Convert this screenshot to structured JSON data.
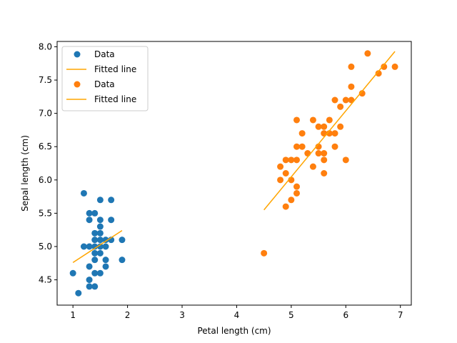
{
  "chart_data": {
    "type": "scatter",
    "xlabel": "Petal length (cm)",
    "ylabel": "Sepal length (cm)",
    "xlim": [
      0.71,
      7.2
    ],
    "ylim": [
      4.12,
      8.08
    ],
    "xticks": [
      1,
      2,
      3,
      4,
      5,
      6,
      7
    ],
    "yticks": [
      4.5,
      5.0,
      5.5,
      6.0,
      6.5,
      7.0,
      7.5,
      8.0
    ],
    "ytick_labels": [
      "4.5",
      "5.0",
      "5.5",
      "6.0",
      "6.5",
      "7.0",
      "7.5",
      "8.0"
    ],
    "grid": false,
    "legend_position": "top-left",
    "legend": [
      {
        "label": "Data",
        "kind": "marker",
        "color": "#1f77b4"
      },
      {
        "label": "Fitted line",
        "kind": "line",
        "color": "#ffa500"
      },
      {
        "label": "Data",
        "kind": "marker",
        "color": "#ff7f0e"
      },
      {
        "label": "Fitted line",
        "kind": "line",
        "color": "#ffa500"
      }
    ],
    "series": [
      {
        "kind": "scatter",
        "color": "#1f77b4",
        "points": [
          [
            1.2,
            5.8
          ],
          [
            1.3,
            5.5
          ],
          [
            1.3,
            5.4
          ],
          [
            1.4,
            5.5
          ],
          [
            1.5,
            5.7
          ],
          [
            1.7,
            5.7
          ],
          [
            1.5,
            5.4
          ],
          [
            1.5,
            5.3
          ],
          [
            1.7,
            5.4
          ],
          [
            1.4,
            5.2
          ],
          [
            1.5,
            5.2
          ],
          [
            1.4,
            5.1
          ],
          [
            1.5,
            5.1
          ],
          [
            1.6,
            5.1
          ],
          [
            1.7,
            5.1
          ],
          [
            1.9,
            5.1
          ],
          [
            1.2,
            5.0
          ],
          [
            1.3,
            5.0
          ],
          [
            1.4,
            5.0
          ],
          [
            1.5,
            5.0
          ],
          [
            1.6,
            5.0
          ],
          [
            1.4,
            4.9
          ],
          [
            1.5,
            4.9
          ],
          [
            1.4,
            4.8
          ],
          [
            1.6,
            4.8
          ],
          [
            1.9,
            4.8
          ],
          [
            1.3,
            4.7
          ],
          [
            1.6,
            4.7
          ],
          [
            1.0,
            4.6
          ],
          [
            1.4,
            4.6
          ],
          [
            1.5,
            4.6
          ],
          [
            1.3,
            4.5
          ],
          [
            1.3,
            4.4
          ],
          [
            1.4,
            4.4
          ],
          [
            1.1,
            4.3
          ]
        ]
      },
      {
        "kind": "line",
        "color": "#ffa500",
        "x": [
          1.0,
          1.9
        ],
        "y": [
          4.76,
          5.24
        ]
      },
      {
        "kind": "scatter",
        "color": "#ff7f0e",
        "points": [
          [
            6.4,
            7.9
          ],
          [
            6.1,
            7.7
          ],
          [
            6.7,
            7.7
          ],
          [
            6.9,
            7.7
          ],
          [
            6.6,
            7.6
          ],
          [
            6.1,
            7.4
          ],
          [
            6.3,
            7.3
          ],
          [
            5.8,
            7.2
          ],
          [
            6.0,
            7.2
          ],
          [
            6.1,
            7.2
          ],
          [
            5.9,
            7.1
          ],
          [
            5.7,
            6.9
          ],
          [
            5.4,
            6.9
          ],
          [
            5.1,
            6.9
          ],
          [
            5.6,
            6.8
          ],
          [
            5.9,
            6.8
          ],
          [
            5.5,
            6.8
          ],
          [
            5.2,
            6.7
          ],
          [
            5.6,
            6.7
          ],
          [
            5.7,
            6.7
          ],
          [
            5.8,
            6.7
          ],
          [
            5.1,
            6.5
          ],
          [
            5.2,
            6.5
          ],
          [
            5.5,
            6.5
          ],
          [
            5.8,
            6.5
          ],
          [
            5.3,
            6.4
          ],
          [
            5.5,
            6.4
          ],
          [
            5.6,
            6.4
          ],
          [
            4.9,
            6.3
          ],
          [
            5.0,
            6.3
          ],
          [
            5.1,
            6.3
          ],
          [
            5.6,
            6.3
          ],
          [
            6.0,
            6.3
          ],
          [
            4.8,
            6.2
          ],
          [
            5.4,
            6.2
          ],
          [
            4.9,
            6.1
          ],
          [
            5.6,
            6.1
          ],
          [
            4.8,
            6.0
          ],
          [
            5.0,
            6.0
          ],
          [
            5.1,
            5.9
          ],
          [
            5.1,
            5.8
          ],
          [
            5.0,
            5.7
          ],
          [
            4.9,
            5.6
          ],
          [
            4.5,
            4.9
          ]
        ]
      },
      {
        "kind": "line",
        "color": "#ffa500",
        "x": [
          4.5,
          6.9
        ],
        "y": [
          5.55,
          7.93
        ]
      }
    ]
  }
}
